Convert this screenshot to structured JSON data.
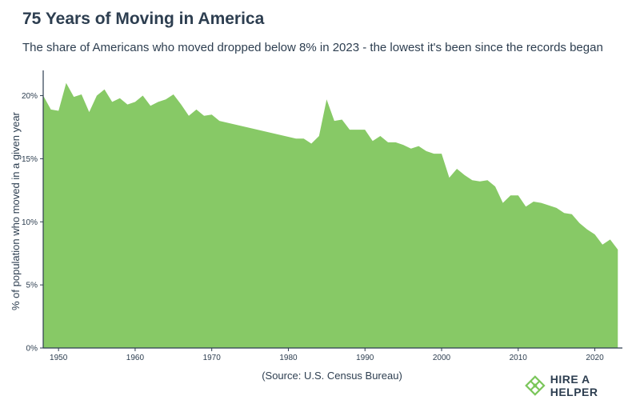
{
  "title": "75 Years of Moving in America",
  "subtitle": "The share of Americans who moved dropped below 8% in 2023 - the lowest it's been since the records began",
  "source": "(Source: U.S. Census Bureau)",
  "brand": {
    "name": "HIRE A HELPER",
    "logo_icon": "diamond-grid-icon",
    "color": "#7ac65a"
  },
  "colors": {
    "area": "#87c966",
    "axis": "#2d3e50",
    "text": "#2d3e50"
  },
  "chart_data": {
    "type": "area",
    "title": "75 Years of Moving in America",
    "ylabel": "% of population who moved in a given year",
    "xlabel": "",
    "xlim": [
      1948,
      2023.6
    ],
    "ylim": [
      0,
      22
    ],
    "x_ticks": [
      1950,
      1960,
      1970,
      1980,
      1990,
      2000,
      2010,
      2020
    ],
    "y_ticks": [
      {
        "value": 0,
        "label": "0%"
      },
      {
        "value": 5,
        "label": "5%"
      },
      {
        "value": 10,
        "label": "10%"
      },
      {
        "value": 15,
        "label": "15%"
      },
      {
        "value": 20,
        "label": "20%"
      }
    ],
    "grid": false,
    "legend": "none",
    "series": [
      {
        "x": [
          1948,
          1949,
          1950,
          1951,
          1952,
          1953,
          1954,
          1955,
          1956,
          1957,
          1958,
          1959,
          1960,
          1961,
          1962,
          1963,
          1964,
          1965,
          1966,
          1967,
          1968,
          1969,
          1970,
          1971,
          1981,
          1982,
          1983,
          1984,
          1985,
          1986,
          1987,
          1988,
          1989,
          1990,
          1991,
          1992,
          1993,
          1994,
          1995,
          1996,
          1997,
          1998,
          1999,
          2000,
          2001,
          2002,
          2003,
          2004,
          2005,
          2006,
          2007,
          2008,
          2009,
          2010,
          2011,
          2012,
          2013,
          2014,
          2015,
          2016,
          2017,
          2018,
          2019,
          2020,
          2021,
          2022,
          2023
        ],
        "values": [
          20.0,
          18.9,
          18.8,
          21.0,
          19.9,
          20.1,
          18.7,
          20.0,
          20.5,
          19.5,
          19.8,
          19.3,
          19.5,
          20.0,
          19.2,
          19.5,
          19.7,
          20.1,
          19.3,
          18.4,
          18.9,
          18.4,
          18.5,
          18.0,
          16.6,
          16.6,
          16.2,
          16.8,
          19.7,
          18.0,
          18.1,
          17.3,
          17.3,
          17.3,
          16.4,
          16.8,
          16.3,
          16.3,
          16.1,
          15.8,
          16.0,
          15.6,
          15.4,
          15.4,
          13.5,
          14.2,
          13.7,
          13.3,
          13.2,
          13.3,
          12.8,
          11.5,
          12.1,
          12.1,
          11.2,
          11.6,
          11.5,
          11.3,
          11.1,
          10.7,
          10.6,
          9.9,
          9.4,
          9.0,
          8.2,
          8.6,
          7.8
        ]
      }
    ]
  }
}
